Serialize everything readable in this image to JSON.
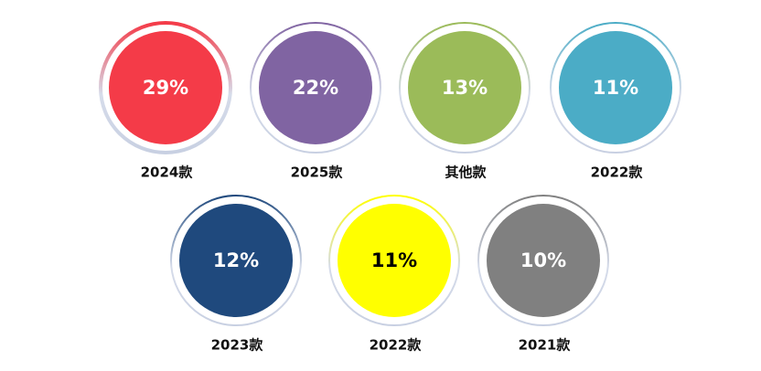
{
  "chart_data": {
    "type": "circles",
    "categories": [
      "2024款",
      "2025款",
      "其他款",
      "2022款",
      "2023款",
      "2022款",
      "2021款"
    ],
    "values": [
      29,
      22,
      13,
      11,
      12,
      11,
      10
    ],
    "value_labels": [
      "29%",
      "22%",
      "13%",
      "11%",
      "12%",
      "11%",
      "10%"
    ],
    "colors": [
      "#f43b48",
      "#8064a2",
      "#9bbb59",
      "#4bacc6",
      "#1f497d",
      "#ffff00",
      "#808080"
    ]
  }
}
